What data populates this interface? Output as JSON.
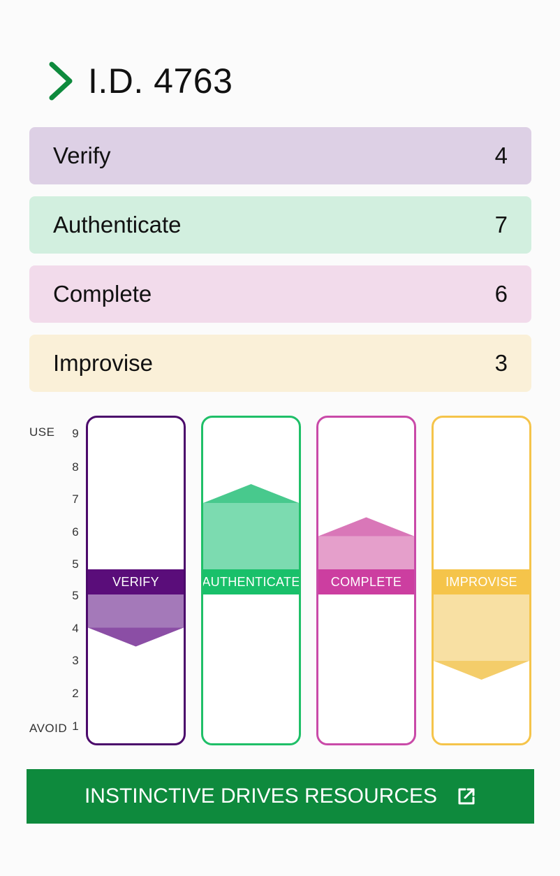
{
  "header": {
    "title": "I.D. 4763",
    "icon": "chevron-right-icon",
    "accent": "#0e8a3d"
  },
  "scores": [
    {
      "label": "Verify",
      "value": "4",
      "bg": "#ddd0e5"
    },
    {
      "label": "Authenticate",
      "value": "7",
      "bg": "#d2efdf"
    },
    {
      "label": "Complete",
      "value": "6",
      "bg": "#f2dbeb"
    },
    {
      "label": "Improvise",
      "value": "3",
      "bg": "#faf0d8"
    }
  ],
  "axis": {
    "top_label": "USE",
    "bottom_label": "AVOID",
    "ticks": [
      "9",
      "8",
      "7",
      "6",
      "5",
      "5",
      "4",
      "3",
      "2",
      "1"
    ]
  },
  "columns": [
    {
      "label": "VERIFY",
      "value": 4,
      "border": "#4b0a6b",
      "band": "#5a0d7a",
      "fill": "#a479b9",
      "arrow": "#8b4ea5"
    },
    {
      "label": "AUTHENTICATE",
      "value": 7,
      "border": "#1fbf68",
      "band": "#19c06a",
      "fill": "#7cdbb0",
      "arrow": "#48c98d"
    },
    {
      "label": "COMPLETE",
      "value": 6,
      "border": "#c94aa8",
      "band": "#cc3ea0",
      "fill": "#e59fcb",
      "arrow": "#d977b8"
    },
    {
      "label": "IMPROVISE",
      "value": 3,
      "border": "#f5c44a",
      "band": "#f5c44a",
      "fill": "#f8e0a3",
      "arrow": "#f4cd6a"
    }
  ],
  "cta": {
    "label": "INSTINCTIVE DRIVES RESOURCES",
    "icon": "external-link-icon"
  }
}
